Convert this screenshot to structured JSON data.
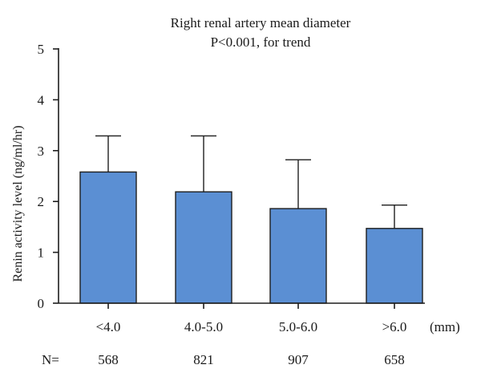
{
  "chart_data": {
    "type": "bar",
    "title": "Right renal artery mean diameter",
    "subtitle": "P<0.001, for trend",
    "ylabel": "Renin activity level (ng/ml/hr)",
    "xunit": "(mm)",
    "ylim": [
      0,
      5
    ],
    "yticks": [
      "0",
      "1",
      "2",
      "3",
      "4",
      "5"
    ],
    "categories": [
      "<4.0",
      "4.0-5.0",
      "5.0-6.0",
      ">6.0"
    ],
    "values": [
      2.58,
      2.19,
      1.86,
      1.47
    ],
    "error_upper": [
      3.29,
      3.29,
      2.82,
      1.93
    ],
    "n_label": "N=",
    "n_values": [
      "568",
      "821",
      "907",
      "658"
    ],
    "colors": {
      "bar": "#5b8fd3",
      "axis": "#1e1e1e"
    },
    "grid": false,
    "legend": "none"
  }
}
